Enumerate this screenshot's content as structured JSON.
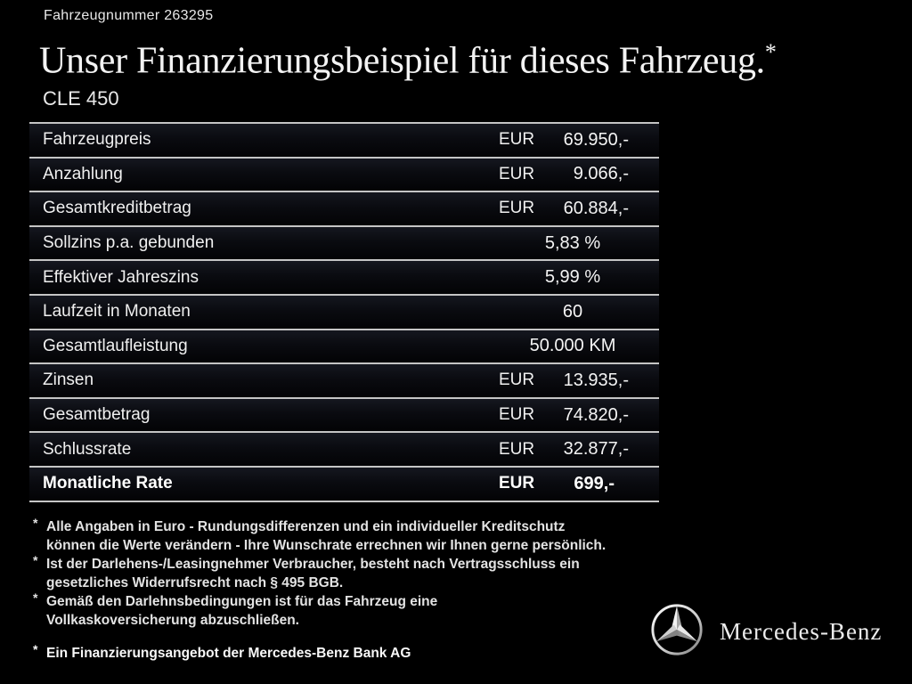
{
  "header": {
    "vehicle_number": "Fahrzeugnummer 263295",
    "title": "Unser Finanzierungsbeispiel für dieses Fahrzeug.",
    "title_asterisk": "*",
    "model": "CLE 450"
  },
  "finance_table": {
    "rows": [
      {
        "label": "Fahrzeugpreis",
        "currency": "EUR",
        "value": "69.950,-",
        "bold": false
      },
      {
        "label": "Anzahlung",
        "currency": "EUR",
        "value": "9.066,-",
        "bold": false
      },
      {
        "label": "Gesamtkreditbetrag",
        "currency": "EUR",
        "value": "60.884,-",
        "bold": false
      },
      {
        "label": "Sollzins p.a. gebunden",
        "currency": "",
        "value": "5,83 %",
        "bold": false
      },
      {
        "label": "Effektiver Jahreszins",
        "currency": "",
        "value": "5,99 %",
        "bold": false
      },
      {
        "label": "Laufzeit in Monaten",
        "currency": "",
        "value": "60",
        "bold": false
      },
      {
        "label": "Gesamtlaufleistung",
        "currency": "",
        "value": "50.000 KM",
        "bold": false
      },
      {
        "label": "Zinsen",
        "currency": "EUR",
        "value": "13.935,-",
        "bold": false
      },
      {
        "label": "Gesamtbetrag",
        "currency": "EUR",
        "value": "74.820,-",
        "bold": false
      },
      {
        "label": "Schlussrate",
        "currency": "EUR",
        "value": "32.877,-",
        "bold": false
      },
      {
        "label": "Monatliche Rate",
        "currency": "EUR",
        "value": "699,-",
        "bold": true
      }
    ]
  },
  "footnotes": [
    {
      "marker": "*",
      "bold": false,
      "lines": [
        "Alle Angaben in Euro - Rundungsdifferenzen und ein individueller Kreditschutz",
        "können die Werte verändern - Ihre Wunschrate errechnen wir Ihnen gerne persönlich."
      ]
    },
    {
      "marker": "*",
      "bold": false,
      "lines": [
        "Ist der Darlehens-/Leasingnehmer Verbraucher, besteht nach Vertragsschluss ein",
        "gesetzliches Widerrufsrecht nach § 495 BGB."
      ]
    },
    {
      "marker": "*",
      "bold": false,
      "lines": [
        "Gemäß den Darlehnsbedingungen ist für das Fahrzeug eine",
        "Vollkaskoversicherung abzuschließen."
      ]
    },
    {
      "marker": "*",
      "bold": true,
      "lines": [
        "Ein Finanzierungsangebot der Mercedes-Benz Bank AG"
      ]
    }
  ],
  "brand": {
    "star_icon": "mercedes-star",
    "wordmark": "Mercedes-Benz"
  },
  "colors": {
    "background": "#000000",
    "text": "#f0f0f0",
    "divider": "#c5c5c5",
    "row_gradient_top": "#15171f",
    "row_gradient_bottom": "#030305"
  }
}
